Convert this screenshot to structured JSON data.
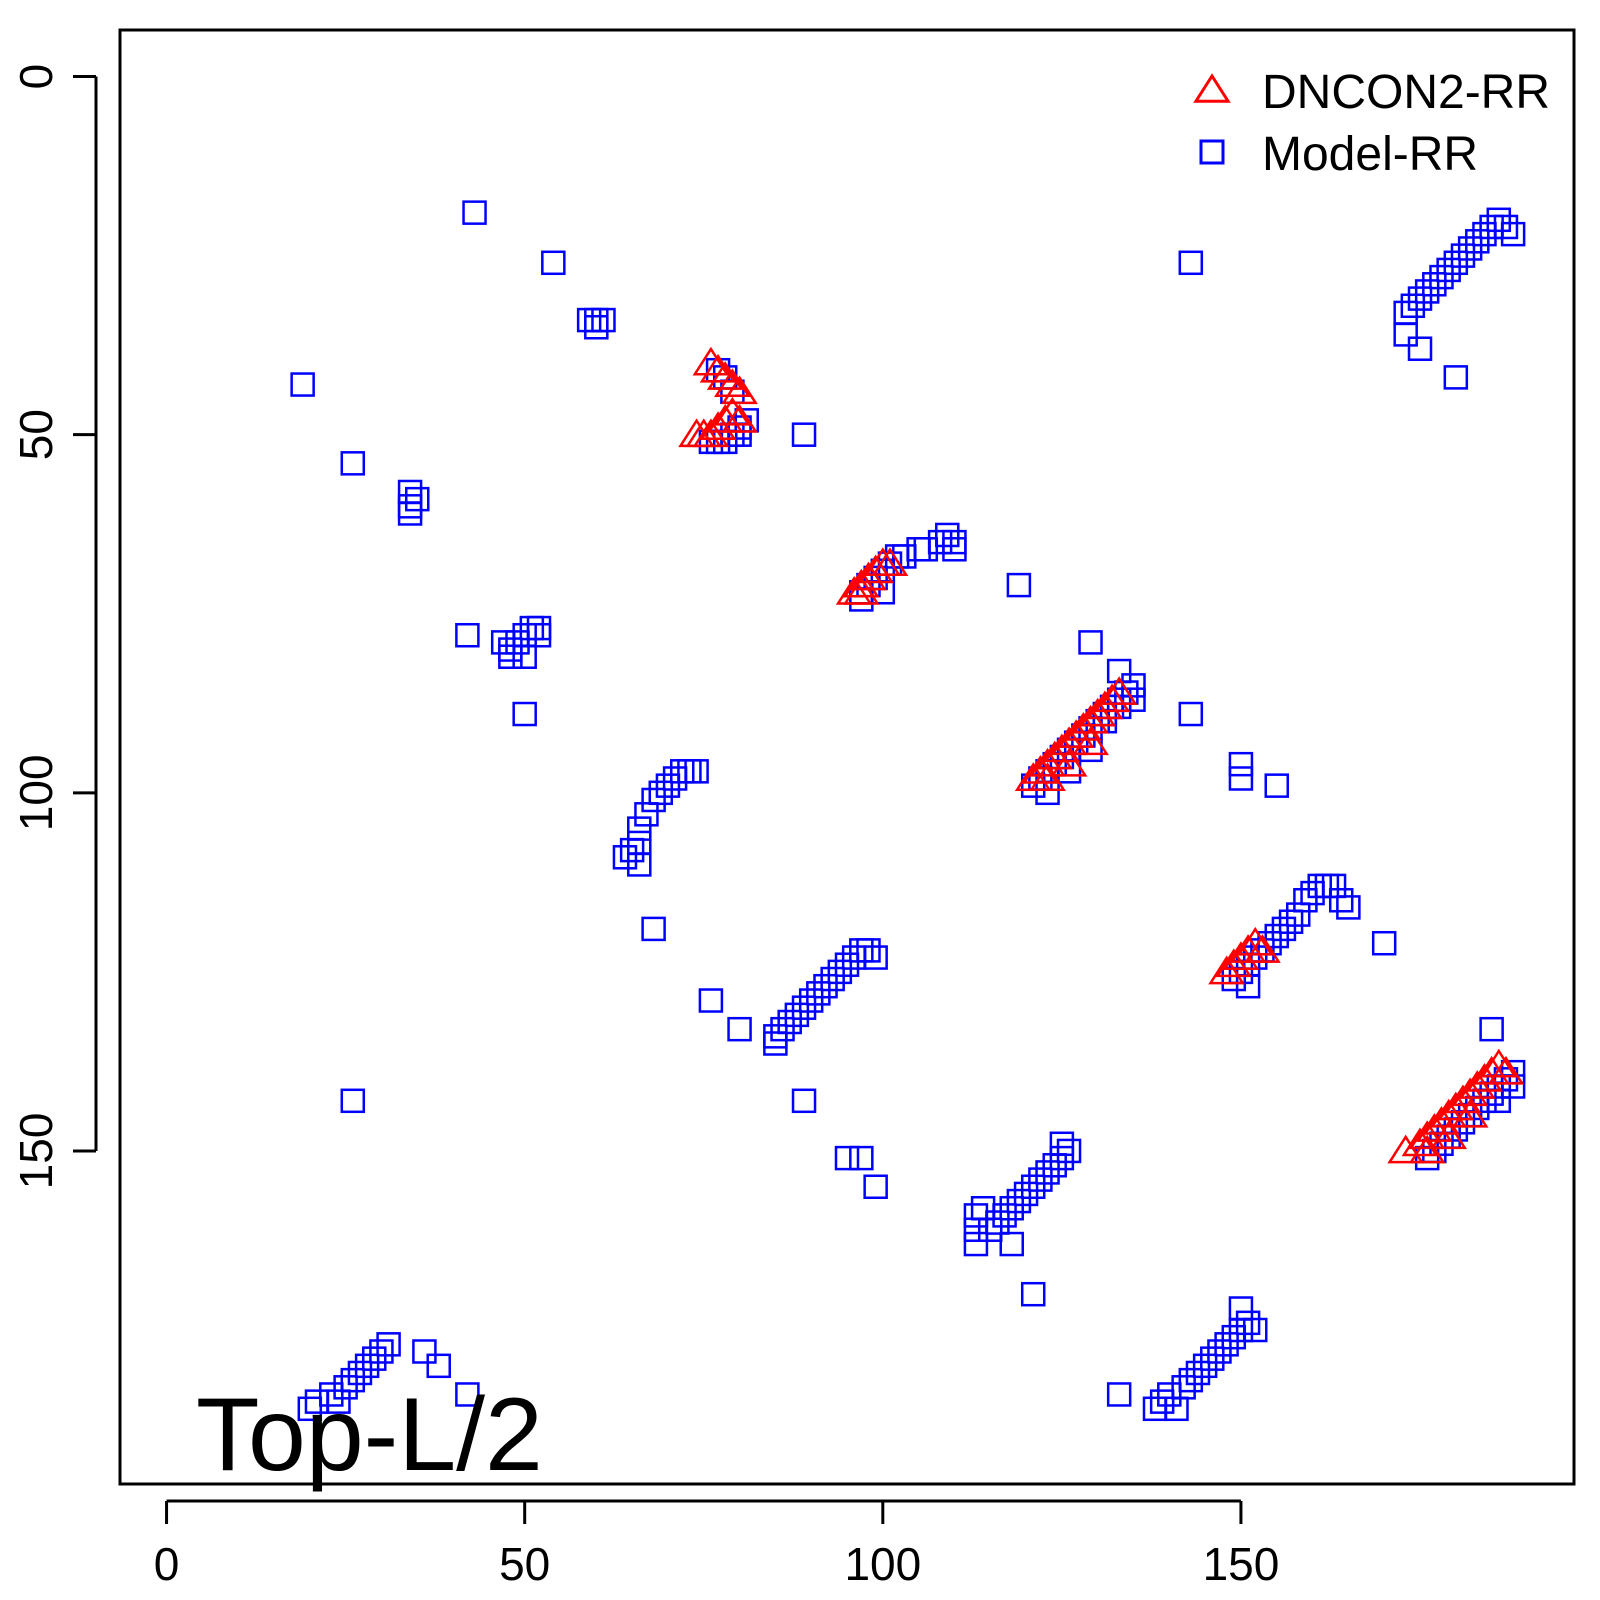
{
  "chart_data": {
    "type": "scatter",
    "title": "",
    "xlabel": "",
    "ylabel": "",
    "xlim": [
      -6.5,
      196.5
    ],
    "ylim": [
      -6.5,
      196.5
    ],
    "y_reversed": true,
    "x_ticks": [
      0,
      50,
      100,
      150
    ],
    "y_ticks": [
      0,
      50,
      100,
      150
    ],
    "annotation": "Top-L/2",
    "legend_position": "top-right",
    "series": [
      {
        "name": "DNCON2-RR",
        "marker": "triangle",
        "color": "#ff0000",
        "points": [
          [
            76,
            40
          ],
          [
            77,
            41
          ],
          [
            78,
            42
          ],
          [
            79,
            43
          ],
          [
            80,
            44
          ],
          [
            74,
            50
          ],
          [
            75,
            50
          ],
          [
            76,
            50
          ],
          [
            77,
            49
          ],
          [
            78,
            48
          ],
          [
            79,
            47
          ],
          [
            80,
            48
          ],
          [
            96,
            72
          ],
          [
            97,
            71
          ],
          [
            98,
            70
          ],
          [
            99,
            69
          ],
          [
            100,
            68
          ],
          [
            101,
            68
          ],
          [
            97,
            72
          ],
          [
            121,
            98
          ],
          [
            122,
            97
          ],
          [
            123,
            96
          ],
          [
            124,
            95
          ],
          [
            125,
            94
          ],
          [
            126,
            93
          ],
          [
            127,
            92
          ],
          [
            128,
            91
          ],
          [
            129,
            90
          ],
          [
            130,
            89
          ],
          [
            131,
            88
          ],
          [
            132,
            87
          ],
          [
            133,
            86
          ],
          [
            123,
            98
          ],
          [
            126,
            96
          ],
          [
            129,
            93
          ],
          [
            148,
            125
          ],
          [
            149,
            124
          ],
          [
            150,
            123
          ],
          [
            151,
            122
          ],
          [
            152,
            121
          ],
          [
            153,
            122
          ],
          [
            173,
            150
          ],
          [
            175,
            149
          ],
          [
            176,
            148
          ],
          [
            177,
            147
          ],
          [
            178,
            146
          ],
          [
            179,
            145
          ],
          [
            180,
            144
          ],
          [
            181,
            143
          ],
          [
            182,
            142
          ],
          [
            183,
            141
          ],
          [
            184,
            140
          ],
          [
            185,
            139
          ],
          [
            186,
            138
          ],
          [
            187,
            139
          ],
          [
            176,
            150
          ],
          [
            179,
            148
          ],
          [
            182,
            145
          ]
        ]
      },
      {
        "name": "Model-RR",
        "marker": "square",
        "color": "#0000ff",
        "points": [
          [
            43,
            19
          ],
          [
            54,
            26
          ],
          [
            59,
            34
          ],
          [
            60,
            34
          ],
          [
            61,
            34
          ],
          [
            60,
            35
          ],
          [
            19,
            43
          ],
          [
            26,
            54
          ],
          [
            34,
            58
          ],
          [
            34,
            60
          ],
          [
            34,
            61
          ],
          [
            35,
            59
          ],
          [
            77,
            41
          ],
          [
            78,
            42
          ],
          [
            79,
            44
          ],
          [
            76,
            51
          ],
          [
            77,
            51
          ],
          [
            78,
            51
          ],
          [
            79,
            50
          ],
          [
            80,
            49
          ],
          [
            81,
            48
          ],
          [
            80,
            50
          ],
          [
            89,
            50
          ],
          [
            97,
            72
          ],
          [
            98,
            71
          ],
          [
            99,
            70
          ],
          [
            100,
            69
          ],
          [
            101,
            68
          ],
          [
            102,
            67
          ],
          [
            103,
            67
          ],
          [
            105,
            66
          ],
          [
            106,
            66
          ],
          [
            108,
            65
          ],
          [
            109,
            64
          ],
          [
            110,
            65
          ],
          [
            110,
            66
          ],
          [
            97,
            73
          ],
          [
            100,
            72
          ],
          [
            119,
            71
          ],
          [
            42,
            78
          ],
          [
            47,
            79
          ],
          [
            48,
            80
          ],
          [
            49,
            79
          ],
          [
            50,
            78
          ],
          [
            51,
            77
          ],
          [
            52,
            77
          ],
          [
            52,
            78
          ],
          [
            48,
            81
          ],
          [
            50,
            81
          ],
          [
            50,
            89
          ],
          [
            121,
            99
          ],
          [
            122,
            98
          ],
          [
            123,
            97
          ],
          [
            124,
            96
          ],
          [
            125,
            95
          ],
          [
            126,
            94
          ],
          [
            127,
            93
          ],
          [
            128,
            92
          ],
          [
            129,
            91
          ],
          [
            130,
            90
          ],
          [
            131,
            89
          ],
          [
            132,
            88
          ],
          [
            133,
            87
          ],
          [
            134,
            86
          ],
          [
            135,
            85
          ],
          [
            135,
            87
          ],
          [
            133,
            88
          ],
          [
            131,
            90
          ],
          [
            123,
            100
          ],
          [
            126,
            97
          ],
          [
            129,
            94
          ],
          [
            129,
            79
          ],
          [
            133,
            83
          ],
          [
            143,
            89
          ],
          [
            150,
            96
          ],
          [
            150,
            98
          ],
          [
            155,
            99
          ],
          [
            64,
            109
          ],
          [
            65,
            108
          ],
          [
            66,
            107
          ],
          [
            66,
            105
          ],
          [
            67,
            103
          ],
          [
            68,
            101
          ],
          [
            69,
            100
          ],
          [
            70,
            99
          ],
          [
            71,
            98
          ],
          [
            72,
            97
          ],
          [
            73,
            97
          ],
          [
            74,
            97
          ],
          [
            66,
            110
          ],
          [
            68,
            119
          ],
          [
            149,
            126
          ],
          [
            150,
            125
          ],
          [
            151,
            124
          ],
          [
            152,
            123
          ],
          [
            153,
            122
          ],
          [
            154,
            121
          ],
          [
            155,
            120
          ],
          [
            156,
            119
          ],
          [
            157,
            118
          ],
          [
            158,
            117
          ],
          [
            159,
            115
          ],
          [
            160,
            114
          ],
          [
            161,
            113
          ],
          [
            162,
            113
          ],
          [
            163,
            113
          ],
          [
            164,
            115
          ],
          [
            165,
            116
          ],
          [
            170,
            121
          ],
          [
            151,
            127
          ],
          [
            76,
            129
          ],
          [
            80,
            133
          ],
          [
            85,
            134
          ],
          [
            86,
            133
          ],
          [
            87,
            132
          ],
          [
            88,
            131
          ],
          [
            89,
            130
          ],
          [
            90,
            129
          ],
          [
            91,
            128
          ],
          [
            92,
            127
          ],
          [
            93,
            126
          ],
          [
            94,
            125
          ],
          [
            95,
            124
          ],
          [
            96,
            123
          ],
          [
            97,
            122
          ],
          [
            98,
            122
          ],
          [
            99,
            123
          ],
          [
            85,
            135
          ],
          [
            89,
            143
          ],
          [
            95,
            151
          ],
          [
            97,
            151
          ],
          [
            99,
            155
          ],
          [
            26,
            143
          ],
          [
            185,
            133
          ],
          [
            176,
            151
          ],
          [
            177,
            150
          ],
          [
            178,
            149
          ],
          [
            179,
            148
          ],
          [
            180,
            147
          ],
          [
            181,
            146
          ],
          [
            182,
            145
          ],
          [
            183,
            144
          ],
          [
            184,
            143
          ],
          [
            185,
            142
          ],
          [
            186,
            141
          ],
          [
            187,
            140
          ],
          [
            188,
            139
          ],
          [
            188,
            141
          ],
          [
            186,
            143
          ],
          [
            113,
            159
          ],
          [
            113,
            161
          ],
          [
            113,
            163
          ],
          [
            114,
            158
          ],
          [
            115,
            161
          ],
          [
            116,
            160
          ],
          [
            117,
            159
          ],
          [
            118,
            158
          ],
          [
            119,
            157
          ],
          [
            120,
            156
          ],
          [
            121,
            155
          ],
          [
            122,
            154
          ],
          [
            123,
            153
          ],
          [
            124,
            152
          ],
          [
            125,
            151
          ],
          [
            125,
            149
          ],
          [
            126,
            150
          ],
          [
            118,
            163
          ],
          [
            121,
            170
          ],
          [
            20,
            186
          ],
          [
            21,
            185
          ],
          [
            23,
            184
          ],
          [
            24,
            185
          ],
          [
            25,
            183
          ],
          [
            26,
            182
          ],
          [
            27,
            181
          ],
          [
            28,
            180
          ],
          [
            29,
            179
          ],
          [
            30,
            178
          ],
          [
            31,
            177
          ],
          [
            36,
            178
          ],
          [
            38,
            180
          ],
          [
            42,
            184
          ],
          [
            133,
            184
          ],
          [
            138,
            186
          ],
          [
            139,
            185
          ],
          [
            140,
            184
          ],
          [
            141,
            186
          ],
          [
            142,
            183
          ],
          [
            143,
            182
          ],
          [
            144,
            181
          ],
          [
            145,
            180
          ],
          [
            146,
            179
          ],
          [
            147,
            178
          ],
          [
            148,
            177
          ],
          [
            149,
            176
          ],
          [
            150,
            175
          ],
          [
            151,
            174
          ],
          [
            152,
            175
          ],
          [
            150,
            172
          ],
          [
            173,
            33
          ],
          [
            174,
            32
          ],
          [
            175,
            31
          ],
          [
            176,
            30
          ],
          [
            177,
            29
          ],
          [
            178,
            28
          ],
          [
            179,
            27
          ],
          [
            180,
            26
          ],
          [
            181,
            25
          ],
          [
            182,
            24
          ],
          [
            183,
            23
          ],
          [
            184,
            22
          ],
          [
            185,
            21
          ],
          [
            186,
            20
          ],
          [
            187,
            21
          ],
          [
            188,
            22
          ],
          [
            173,
            36
          ],
          [
            175,
            38
          ],
          [
            180,
            42
          ],
          [
            143,
            26
          ]
        ]
      }
    ]
  }
}
